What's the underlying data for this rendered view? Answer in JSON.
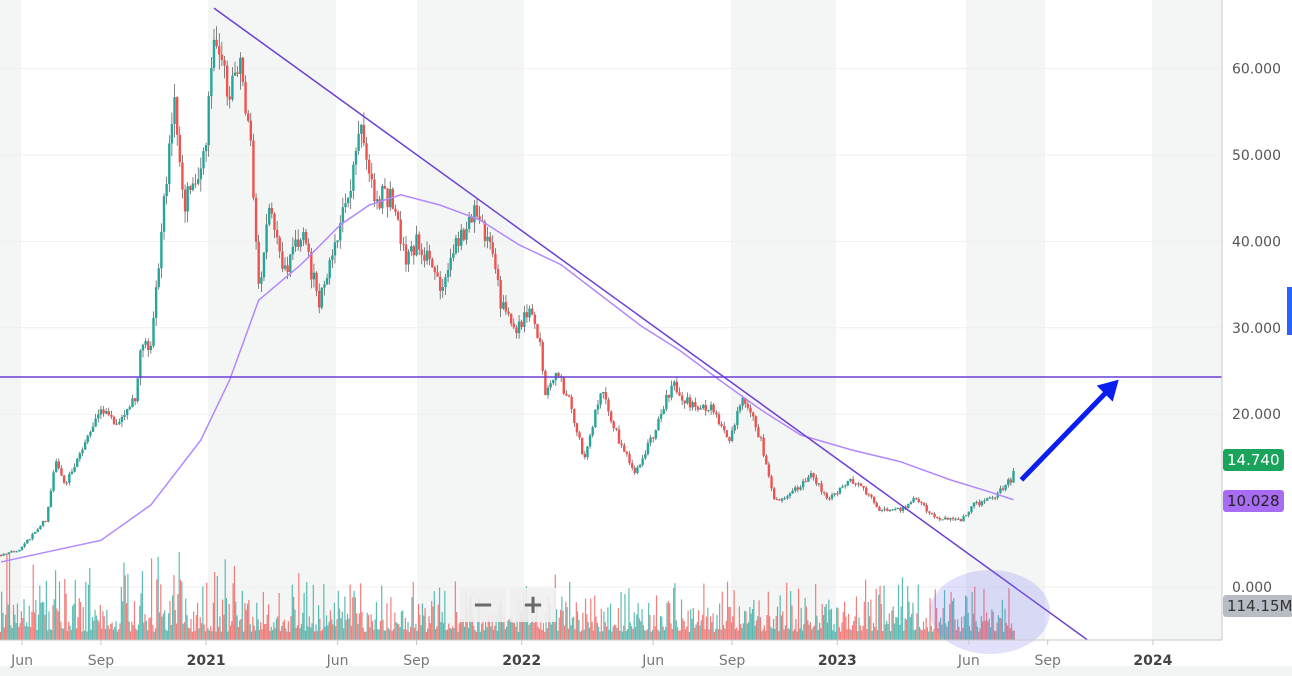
{
  "chart_data": {
    "type": "candlestick",
    "title": "",
    "x_unit": "months since Jun 2020",
    "x_ticks": [
      {
        "label": "Jun",
        "m": 0,
        "major": false
      },
      {
        "label": "Sep",
        "m": 3,
        "major": false
      },
      {
        "label": "2021",
        "m": 7,
        "major": true
      },
      {
        "label": "Jun",
        "m": 12,
        "major": false
      },
      {
        "label": "Sep",
        "m": 15,
        "major": false
      },
      {
        "label": "2022",
        "m": 19,
        "major": true
      },
      {
        "label": "Jun",
        "m": 24,
        "major": false
      },
      {
        "label": "Sep",
        "m": 27,
        "major": false
      },
      {
        "label": "2023",
        "m": 31,
        "major": true
      },
      {
        "label": "Jun",
        "m": 36,
        "major": false
      },
      {
        "label": "Sep",
        "m": 39,
        "major": false
      },
      {
        "label": "2024",
        "m": 43,
        "major": true
      }
    ],
    "y_ticks": [
      "0.000",
      "20.000",
      "30.000",
      "40.000",
      "50.000",
      "60.000"
    ],
    "y_tick_values": [
      0,
      20,
      30,
      40,
      50,
      60
    ],
    "ylim": [
      -6,
      68
    ],
    "price_path": [
      [
        -0.8,
        3.7
      ],
      [
        -0.1,
        4.3
      ],
      [
        0.9,
        7.8
      ],
      [
        1.3,
        14.7
      ],
      [
        1.6,
        11.8
      ],
      [
        2.8,
        19.3
      ],
      [
        3.0,
        20.5
      ],
      [
        3.5,
        18.8
      ],
      [
        4.3,
        21.6
      ],
      [
        4.5,
        28
      ],
      [
        4.9,
        27.4
      ],
      [
        5.2,
        37.8
      ],
      [
        5.6,
        50.6
      ],
      [
        5.8,
        55.2
      ],
      [
        6.2,
        44.8
      ],
      [
        6.6,
        47
      ],
      [
        7.0,
        51.7
      ],
      [
        7.3,
        63.3
      ],
      [
        7.7,
        59.3
      ],
      [
        7.9,
        56.4
      ],
      [
        8.3,
        61
      ],
      [
        8.7,
        51.7
      ],
      [
        9.0,
        34.4
      ],
      [
        9.4,
        43.6
      ],
      [
        10.0,
        36.7
      ],
      [
        10.6,
        41.3
      ],
      [
        11.3,
        33.2
      ],
      [
        11.9,
        39
      ],
      [
        12.5,
        47.1
      ],
      [
        12.9,
        54
      ],
      [
        13.4,
        44.8
      ],
      [
        14.0,
        45.4
      ],
      [
        14.6,
        37.8
      ],
      [
        15.1,
        40.2
      ],
      [
        15.9,
        35
      ],
      [
        16.7,
        40.7
      ],
      [
        17.2,
        43
      ],
      [
        17.8,
        40.2
      ],
      [
        18.2,
        33.2
      ],
      [
        18.7,
        29.7
      ],
      [
        19.3,
        32
      ],
      [
        19.7,
        28
      ],
      [
        19.9,
        21.6
      ],
      [
        20.3,
        25.1
      ],
      [
        20.8,
        21.6
      ],
      [
        21.4,
        14.7
      ],
      [
        22.0,
        22.8
      ],
      [
        22.7,
        17
      ],
      [
        23.3,
        13
      ],
      [
        24.1,
        18.2
      ],
      [
        24.7,
        23.4
      ],
      [
        25.4,
        21.1
      ],
      [
        26.2,
        20.5
      ],
      [
        26.9,
        17
      ],
      [
        27.4,
        22.2
      ],
      [
        28.1,
        17
      ],
      [
        28.6,
        10.1
      ],
      [
        29.2,
        10.6
      ],
      [
        30.0,
        13
      ],
      [
        30.7,
        10.1
      ],
      [
        31.5,
        12.4
      ],
      [
        31.9,
        11.8
      ],
      [
        32.6,
        8.9
      ],
      [
        33.4,
        8.9
      ],
      [
        34.0,
        10.3
      ],
      [
        34.7,
        8
      ],
      [
        35.7,
        7.8
      ],
      [
        36.2,
        9.5
      ],
      [
        36.8,
        10.1
      ],
      [
        37.2,
        11.2
      ],
      [
        37.6,
        12.4
      ],
      [
        37.8,
        14.7
      ]
    ],
    "moving_average": [
      [
        -0.8,
        2.9
      ],
      [
        3.0,
        5.4
      ],
      [
        4.9,
        9.5
      ],
      [
        6.8,
        17.0
      ],
      [
        7.9,
        24.0
      ],
      [
        9.0,
        33.2
      ],
      [
        10.6,
        37.3
      ],
      [
        12.1,
        41.9
      ],
      [
        13.2,
        44.2
      ],
      [
        14.4,
        45.4
      ],
      [
        15.9,
        44.2
      ],
      [
        17.4,
        42.5
      ],
      [
        18.9,
        39.6
      ],
      [
        20.5,
        37.3
      ],
      [
        22.0,
        33.8
      ],
      [
        23.5,
        30.3
      ],
      [
        25.0,
        27.4
      ],
      [
        26.5,
        24.0
      ],
      [
        28.1,
        20.5
      ],
      [
        29.6,
        17.6
      ],
      [
        31.5,
        15.9
      ],
      [
        33.4,
        14.5
      ],
      [
        35.3,
        12.4
      ],
      [
        36.8,
        11.0
      ],
      [
        37.7,
        10.1
      ]
    ],
    "drawings": {
      "trendline": [
        [
          7.3,
          67
        ],
        [
          40.5,
          -6.1
        ]
      ],
      "horizontal_line": 24.3,
      "arrow": [
        [
          38.0,
          12.4
        ],
        [
          41.7,
          24.0
        ]
      ]
    },
    "last_price": "14.740",
    "ma_value": "10.028",
    "volume_label": "114.15M",
    "colors": {
      "up": "#26a69a",
      "down": "#ef5350",
      "ma": "#b388ff",
      "trend": "#6a3fd6",
      "arrow": "#0a1ef0",
      "last": "#1aa35a",
      "ma_badge": "#a86cf2",
      "vol_badge": "#b8bcc4"
    }
  },
  "controls": {
    "zoom_out": "−",
    "zoom_in": "+"
  }
}
